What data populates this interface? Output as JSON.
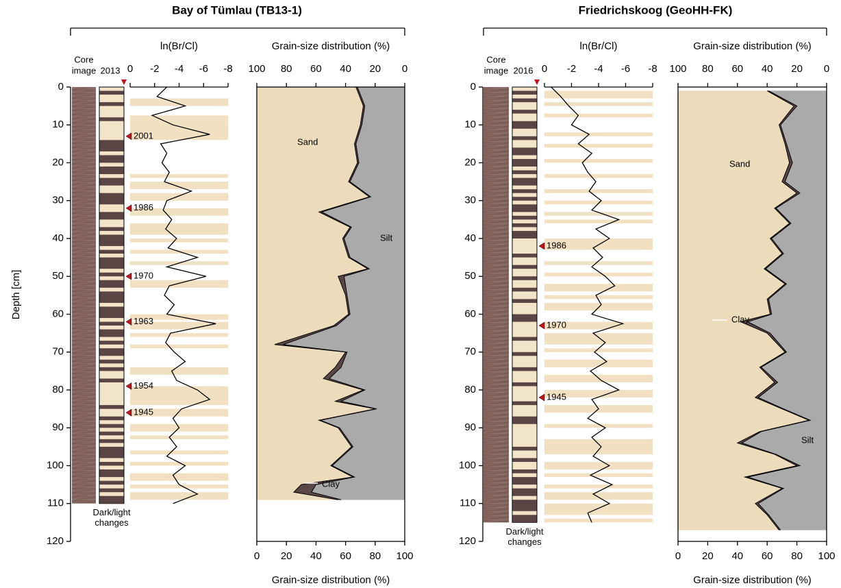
{
  "chart_data": [
    {
      "type": "profile",
      "title": "Bay of Tümlau (TB13-1)",
      "ylabel": "Depth [cm]",
      "ylim": [
        0,
        120
      ],
      "yticks": [
        0,
        10,
        20,
        30,
        40,
        50,
        60,
        70,
        80,
        90,
        100,
        110,
        120
      ],
      "core_label": [
        "Core",
        "image"
      ],
      "bands_label": [
        "Dark/light",
        "changes"
      ],
      "year": "2013",
      "dark_color": "#5b4444",
      "light_color": "#f2e4c8",
      "dark_bands": [
        [
          1,
          2
        ],
        [
          4,
          5
        ],
        [
          8,
          9
        ],
        [
          14,
          17
        ],
        [
          18,
          20
        ],
        [
          21,
          23
        ],
        [
          24,
          26
        ],
        [
          28,
          31
        ],
        [
          33,
          35
        ],
        [
          37,
          38
        ],
        [
          39,
          42
        ],
        [
          43,
          44
        ],
        [
          45,
          48
        ],
        [
          49,
          50
        ],
        [
          51,
          53
        ],
        [
          54,
          57
        ],
        [
          58,
          61
        ],
        [
          62,
          63
        ],
        [
          64,
          66
        ],
        [
          67,
          68
        ],
        [
          69,
          71
        ],
        [
          72,
          73
        ],
        [
          74,
          75
        ],
        [
          77,
          78
        ],
        [
          84,
          85
        ],
        [
          87,
          88
        ],
        [
          89,
          90
        ],
        [
          91,
          92
        ],
        [
          93,
          94
        ],
        [
          95,
          98
        ],
        [
          99,
          100
        ],
        [
          101,
          103
        ],
        [
          104,
          105
        ],
        [
          106,
          107
        ],
        [
          108,
          110
        ]
      ],
      "brcl": {
        "label": "ln(Br/Cl)",
        "xlim": [
          0,
          -8
        ],
        "xticks": [
          0,
          -2,
          -4,
          -6,
          -8
        ],
        "color": "#000000",
        "band_color": "#f1e1c2",
        "light_bands": [
          [
            3,
            5
          ],
          [
            7.5,
            9
          ],
          [
            9,
            14
          ],
          [
            23,
            24
          ],
          [
            25,
            27
          ],
          [
            28,
            30
          ],
          [
            32,
            34
          ],
          [
            36,
            39
          ],
          [
            40,
            41
          ],
          [
            43,
            44
          ],
          [
            46,
            47
          ],
          [
            51,
            53
          ],
          [
            60,
            61.5
          ],
          [
            62,
            64
          ],
          [
            65,
            66
          ],
          [
            68,
            69
          ],
          [
            74,
            76
          ],
          [
            79,
            84
          ],
          [
            85,
            87
          ],
          [
            89,
            91
          ],
          [
            92,
            93
          ],
          [
            96,
            97
          ],
          [
            99,
            100
          ],
          [
            102,
            104
          ],
          [
            105,
            106
          ],
          [
            107,
            109
          ]
        ],
        "depths": [
          0,
          2.5,
          5,
          7.5,
          10,
          12.5,
          15,
          17.5,
          20,
          22.5,
          25,
          27.5,
          30,
          32.5,
          35,
          37.5,
          40,
          42.5,
          45,
          47.5,
          50,
          52.5,
          55,
          57.5,
          60,
          62.5,
          65,
          67.5,
          70,
          72.5,
          75,
          77.5,
          80,
          82.5,
          85,
          87.5,
          90,
          92.5,
          95,
          97.5,
          100,
          102.5,
          105,
          107.5,
          110
        ],
        "values": [
          -3,
          -2.2,
          -4.5,
          -1.8,
          -3.5,
          -6.5,
          -2.5,
          -3,
          -2.6,
          -3.2,
          -2.8,
          -5,
          -3,
          -2.7,
          -3.4,
          -2.9,
          -3.8,
          -3.1,
          -5.5,
          -3,
          -6.2,
          -3.2,
          -2.8,
          -3.6,
          -3,
          -7,
          -3.3,
          -2.9,
          -3.6,
          -4.5,
          -3.4,
          -3.8,
          -5.5,
          -6.5,
          -4.2,
          -3.5,
          -4,
          -3.2,
          -3.8,
          -3,
          -4.5,
          -3.5,
          -4,
          -5.5,
          -3.5
        ]
      },
      "markers": [
        {
          "depth": 13,
          "label": "2001"
        },
        {
          "depth": 32,
          "label": "1986"
        },
        {
          "depth": 50,
          "label": "1970"
        },
        {
          "depth": 62,
          "label": "1963"
        },
        {
          "depth": 79,
          "label": "1954"
        },
        {
          "depth": 86,
          "label": "1945"
        }
      ],
      "marker_color": "#c0141b",
      "grain": {
        "top_label": "Grain-size distribution (%)",
        "bottom_label": "Grain-size distribution (%)",
        "top_xlim": [
          100,
          0
        ],
        "top_xticks": [
          100,
          80,
          60,
          40,
          20,
          0
        ],
        "xlim": [
          0,
          100
        ],
        "xticks": [
          0,
          20,
          40,
          60,
          80,
          100
        ],
        "depths": [
          0,
          5,
          10,
          15,
          20,
          25,
          29,
          33,
          37,
          40,
          45,
          48,
          50,
          55,
          60,
          63,
          68,
          70,
          74,
          77,
          80,
          83,
          85,
          88,
          90,
          95,
          100,
          103,
          105,
          107,
          109
        ],
        "series": [
          {
            "name": "Sand",
            "color": "#eddcbc",
            "values": [
              67,
              72,
              70,
              66,
              68,
              62,
              76,
              42,
              63,
              58,
              62,
              75,
              55,
              60,
              62,
              52,
              12,
              60,
              53,
              45,
              72,
              53,
              80,
              42,
              55,
              64,
              50,
              65,
              30,
              25,
              55
            ]
          },
          {
            "name": "Clay",
            "color": "#5a4646",
            "values": [
              1,
              1,
              1,
              1,
              1,
              1,
              1,
              2,
              1,
              1,
              1,
              1,
              4,
              1,
              1,
              2,
              6,
              1,
              4,
              4,
              1,
              4,
              1,
              1,
              1,
              1,
              1,
              1,
              10,
              12,
              2
            ]
          },
          {
            "name": "Silt",
            "color": "#aaaaaa",
            "values": [
              32,
              27,
              29,
              33,
              31,
              37,
              23,
              56,
              36,
              41,
              37,
              24,
              41,
              39,
              37,
              46,
              82,
              39,
              43,
              51,
              27,
              43,
              19,
              57,
              44,
              35,
              49,
              34,
              60,
              63,
              43
            ]
          }
        ]
      }
    },
    {
      "type": "profile",
      "title": "Friedrichskoog (GeoHH-FK)",
      "ylim": [
        0,
        120
      ],
      "yticks": [
        0,
        10,
        20,
        30,
        40,
        50,
        60,
        70,
        80,
        90,
        100,
        110,
        120
      ],
      "core_label": [
        "Core",
        "image"
      ],
      "bands_label": [
        "Dark/light",
        "changes"
      ],
      "year": "2016",
      "dark_color": "#5b4444",
      "light_color": "#f2e4c8",
      "dark_bands": [
        [
          1,
          2
        ],
        [
          3,
          4
        ],
        [
          6,
          7
        ],
        [
          9,
          11
        ],
        [
          13,
          14
        ],
        [
          16,
          18
        ],
        [
          19,
          21
        ],
        [
          22,
          23
        ],
        [
          24,
          26
        ],
        [
          27,
          28
        ],
        [
          29,
          30
        ],
        [
          31,
          33
        ],
        [
          34,
          35
        ],
        [
          36,
          37
        ],
        [
          38,
          40
        ],
        [
          44,
          45
        ],
        [
          47,
          48
        ],
        [
          50,
          51
        ],
        [
          53,
          54
        ],
        [
          56,
          57
        ],
        [
          60,
          62
        ],
        [
          66,
          67
        ],
        [
          70,
          71
        ],
        [
          74,
          75
        ],
        [
          78,
          79
        ],
        [
          83,
          84
        ],
        [
          87,
          89
        ],
        [
          95,
          96
        ],
        [
          98,
          99
        ],
        [
          101,
          102
        ],
        [
          103,
          105
        ],
        [
          106,
          108
        ],
        [
          109,
          112
        ],
        [
          113,
          115
        ]
      ],
      "brcl": {
        "label": "ln(Br/Cl)",
        "xlim": [
          0,
          -8
        ],
        "xticks": [
          0,
          -2,
          -4,
          -6,
          -8
        ],
        "color": "#000000",
        "band_color": "#f1e1c2",
        "light_bands": [
          [
            1,
            3
          ],
          [
            4,
            5
          ],
          [
            7,
            8
          ],
          [
            12,
            13
          ],
          [
            15,
            16
          ],
          [
            19,
            20
          ],
          [
            23,
            24
          ],
          [
            27,
            28
          ],
          [
            30,
            31
          ],
          [
            33,
            34
          ],
          [
            35,
            36
          ],
          [
            40,
            43
          ],
          [
            46,
            47
          ],
          [
            49,
            50
          ],
          [
            52,
            54
          ],
          [
            55,
            56
          ],
          [
            57,
            59
          ],
          [
            62,
            64
          ],
          [
            65,
            68
          ],
          [
            69,
            70
          ],
          [
            72,
            74
          ],
          [
            76,
            78
          ],
          [
            80,
            82
          ],
          [
            84,
            86
          ],
          [
            89,
            90
          ],
          [
            93,
            97
          ],
          [
            99,
            101
          ],
          [
            102,
            103
          ],
          [
            105,
            106
          ],
          [
            107,
            109
          ],
          [
            110,
            113
          ],
          [
            114,
            115
          ]
        ],
        "depths": [
          0,
          2.5,
          5,
          7.5,
          10,
          12.5,
          15,
          17.5,
          20,
          22.5,
          25,
          27.5,
          30,
          32.5,
          35,
          37.5,
          40,
          42.5,
          45,
          47.5,
          50,
          52.5,
          55,
          57.5,
          60,
          62.5,
          65,
          67.5,
          70,
          72.5,
          75,
          77.5,
          80,
          82.5,
          85,
          87.5,
          90,
          92.5,
          95,
          97.5,
          100,
          102.5,
          105,
          107.5,
          110,
          112.5,
          115
        ],
        "values": [
          -0.5,
          -1.2,
          -1.8,
          -2.5,
          -2,
          -3.3,
          -2.5,
          -3.5,
          -2.8,
          -3.2,
          -3.8,
          -3.3,
          -4.2,
          -3.5,
          -5.5,
          -3.8,
          -4.8,
          -3.6,
          -4.3,
          -3.5,
          -4.5,
          -5.2,
          -3.8,
          -4.2,
          -3.5,
          -5.8,
          -3.6,
          -4.5,
          -3.7,
          -4.6,
          -3.4,
          -4.2,
          -5.5,
          -3.5,
          -4,
          -3.2,
          -4.5,
          -3.5,
          -4.2,
          -3.6,
          -4.8,
          -3.4,
          -5,
          -3.6,
          -4.8,
          -3.2,
          -3.5
        ]
      },
      "markers": [
        {
          "depth": 42,
          "label": "1986"
        },
        {
          "depth": 63,
          "label": "1970"
        },
        {
          "depth": 82,
          "label": "1945"
        }
      ],
      "marker_color": "#c0141b",
      "grain": {
        "top_label": "Grain-size distribution (%)",
        "bottom_label": "Grain-size distribution (%)",
        "top_xlim": [
          100,
          0
        ],
        "top_xticks": [
          100,
          80,
          60,
          40,
          20,
          0
        ],
        "xlim": [
          0,
          100
        ],
        "xticks": [
          0,
          20,
          40,
          60,
          80,
          100
        ],
        "depths": [
          1,
          5,
          10,
          15,
          20,
          25,
          28,
          32,
          36,
          40,
          44,
          48,
          52,
          56,
          60,
          62,
          65,
          70,
          74,
          78,
          82,
          85,
          88,
          91,
          94,
          97,
          100,
          103,
          106,
          110,
          113,
          117
        ],
        "series": [
          {
            "name": "Sand",
            "color": "#eddcbc",
            "values": [
              60,
              78,
              68,
              72,
              75,
              70,
              80,
              65,
              75,
              62,
              70,
              58,
              72,
              60,
              62,
              42,
              60,
              72,
              55,
              65,
              52,
              70,
              88,
              55,
              40,
              65,
              80,
              45,
              70,
              52,
              60,
              68
            ]
          },
          {
            "name": "Clay",
            "color": "#5a4646",
            "values": [
              1,
              2,
              1,
              1,
              2,
              2,
              2,
              1,
              1,
              1,
              1,
              1,
              1,
              1,
              1,
              5,
              2,
              1,
              1,
              2,
              2,
              1,
              1,
              1,
              3,
              1,
              2,
              2,
              1,
              2,
              1,
              1
            ]
          },
          {
            "name": "Silt",
            "color": "#aaaaaa",
            "values": [
              39,
              20,
              31,
              27,
              23,
              28,
              18,
              34,
              24,
              37,
              29,
              41,
              27,
              39,
              37,
              53,
              38,
              27,
              44,
              33,
              46,
              29,
              11,
              44,
              57,
              34,
              18,
              53,
              29,
              46,
              39,
              31
            ]
          }
        ]
      }
    }
  ]
}
